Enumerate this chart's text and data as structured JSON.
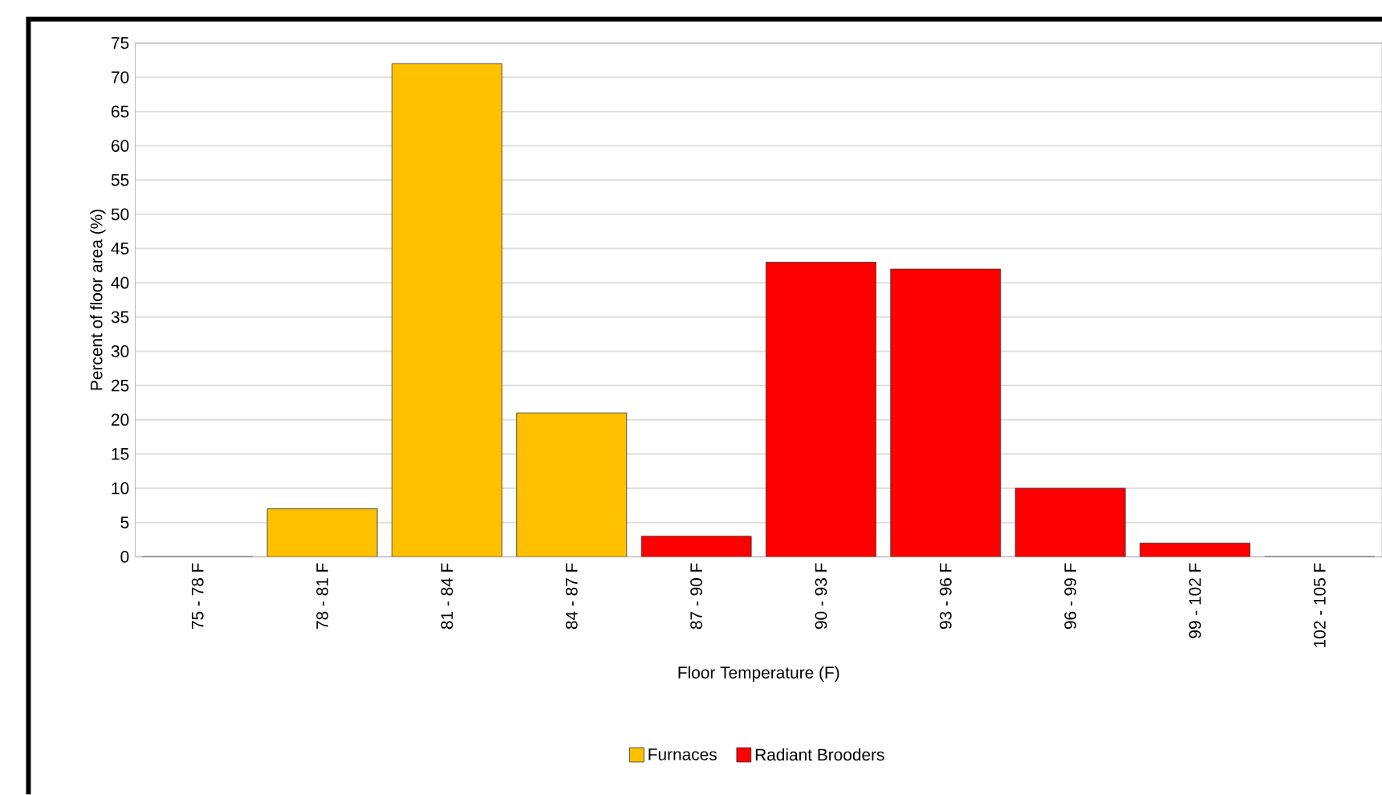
{
  "chart_data": {
    "type": "bar",
    "xlabel": "Floor Temperature (F)",
    "ylabel": "Percent of floor area (%)",
    "categories": [
      "75 - 78 F",
      "78 - 81 F",
      "81 - 84 F",
      "84 - 87 F",
      "87 - 90 F",
      "90 - 93 F",
      "93 - 96 F",
      "96 - 99 F",
      "99 - 102 F",
      "102 - 105 F"
    ],
    "series": [
      {
        "name": "Furnaces",
        "color": "#ffc000",
        "values": [
          0,
          7,
          72,
          21,
          null,
          null,
          null,
          null,
          null,
          null
        ]
      },
      {
        "name": "Radiant Brooders",
        "color": "#ff0000",
        "values": [
          null,
          null,
          null,
          null,
          3,
          43,
          42,
          10,
          2,
          0
        ]
      }
    ],
    "ylim": [
      0,
      75
    ],
    "yticks": [
      0,
      5,
      10,
      15,
      20,
      25,
      30,
      35,
      40,
      45,
      50,
      55,
      60,
      65,
      70,
      75
    ],
    "grid": "y",
    "legend": "bottom"
  }
}
